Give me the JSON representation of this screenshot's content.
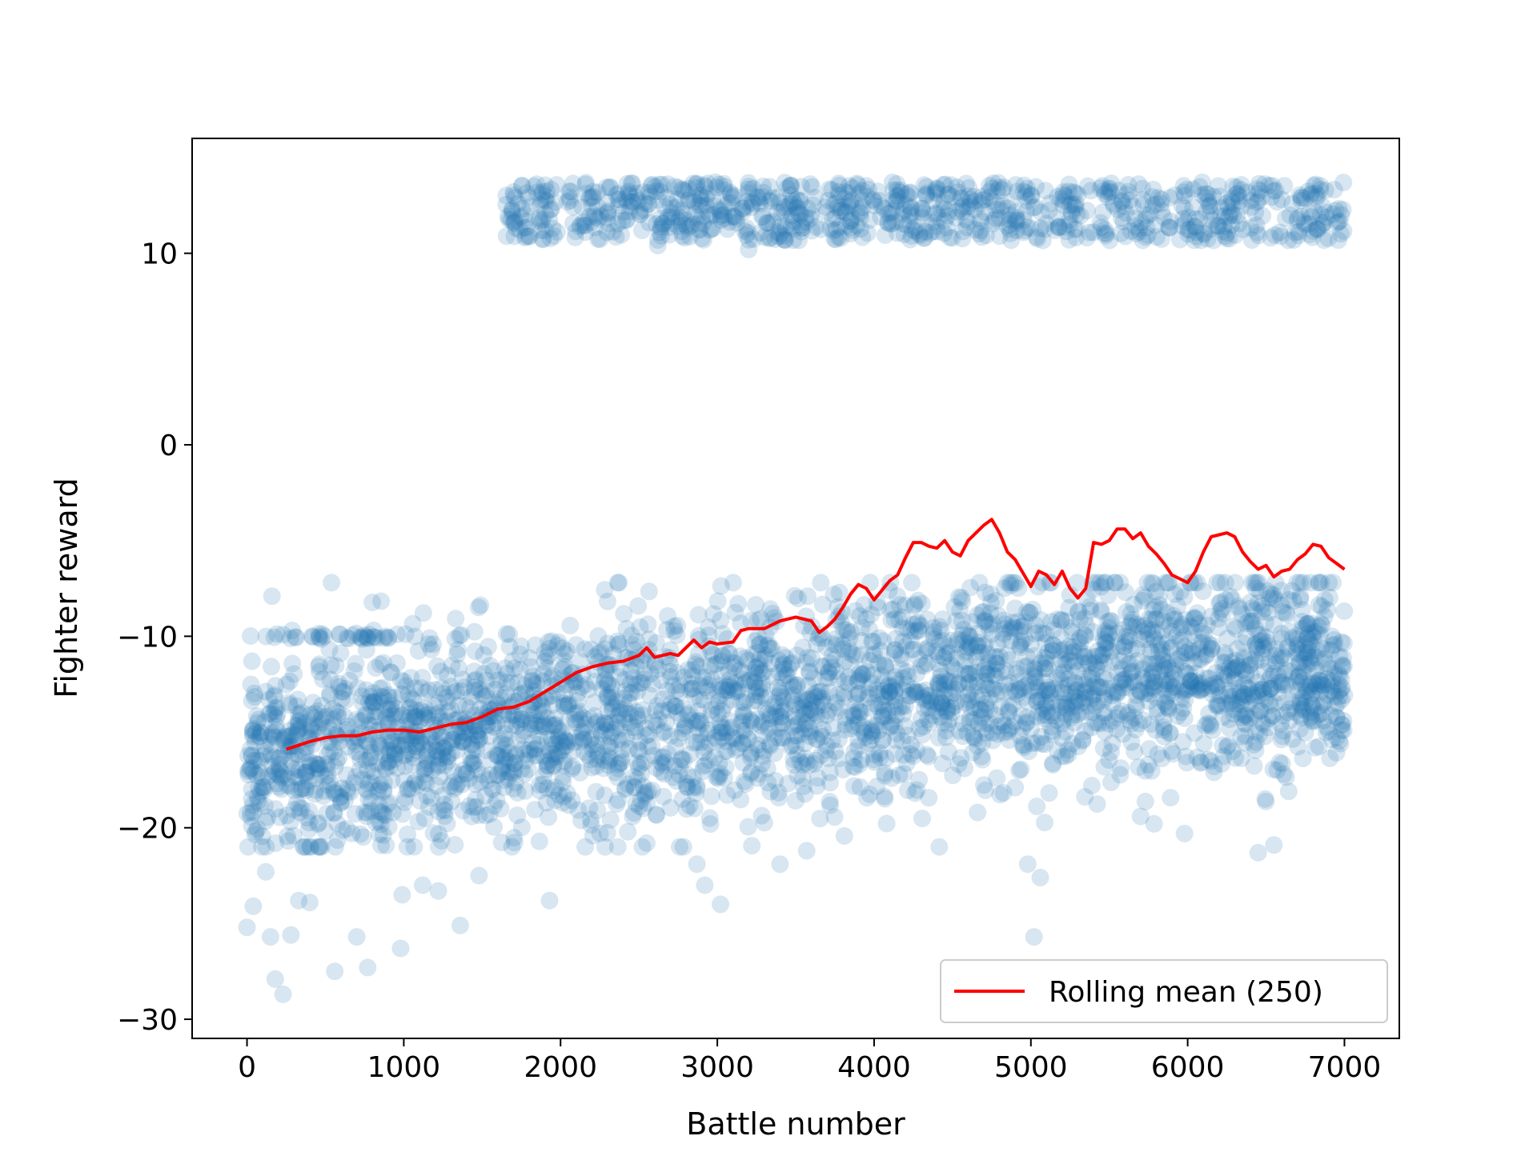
{
  "chart_data": {
    "type": "scatter",
    "title": "",
    "xlabel": "Battle number",
    "ylabel": "Fighter reward",
    "xlim": [
      -350,
      7350
    ],
    "ylim": [
      -31,
      16
    ],
    "xticks": [
      0,
      1000,
      2000,
      3000,
      4000,
      5000,
      6000,
      7000
    ],
    "yticks": [
      -30,
      -20,
      -10,
      0,
      10
    ],
    "ytick_labels": [
      "−30",
      "−20",
      "−10",
      "0",
      "10"
    ],
    "grid": false,
    "legend_position": "lower-right",
    "series": [
      {
        "type": "scatter",
        "color": "#1f77b4",
        "alpha": 0.18,
        "note_points": "approx. one point per battle, 0–7000",
        "clusters": [
          {
            "x_range": [
              0,
              1100
            ],
            "y": -10,
            "spread": 0.15,
            "count": 40
          },
          {
            "x_range": [
              0,
              7000
            ],
            "y_mean_start": -16.5,
            "y_mean_end": -12,
            "spread": 2.6,
            "count": 3200
          },
          {
            "x_range": [
              1650,
              7000
            ],
            "y": 12.2,
            "spread": 0.85,
            "count": 900
          }
        ],
        "outliers": [
          [
            0,
            -25.2
          ],
          [
            40,
            -24.1
          ],
          [
            120,
            -22.3
          ],
          [
            150,
            -25.7
          ],
          [
            180,
            -27.9
          ],
          [
            230,
            -28.7
          ],
          [
            280,
            -25.6
          ],
          [
            330,
            -23.8
          ],
          [
            400,
            -23.9
          ],
          [
            560,
            -27.5
          ],
          [
            700,
            -25.7
          ],
          [
            770,
            -27.3
          ],
          [
            980,
            -26.3
          ],
          [
            990,
            -23.5
          ],
          [
            1120,
            -23.0
          ],
          [
            1220,
            -23.3
          ],
          [
            1360,
            -25.1
          ],
          [
            1480,
            -22.5
          ],
          [
            1930,
            -23.8
          ],
          [
            2550,
            -20.8
          ],
          [
            2870,
            -21.9
          ],
          [
            2920,
            -23.0
          ],
          [
            3020,
            -24.0
          ],
          [
            3400,
            -21.9
          ],
          [
            3570,
            -21.2
          ],
          [
            4980,
            -21.9
          ],
          [
            5020,
            -25.7
          ],
          [
            5060,
            -22.6
          ],
          [
            5980,
            -20.3
          ],
          [
            6450,
            -21.3
          ],
          [
            6550,
            -20.9
          ],
          [
            4900,
            -17.9
          ],
          [
            1700,
            13.2
          ],
          [
            1830,
            13.5
          ],
          [
            1950,
            11.3
          ],
          [
            2620,
            10.4
          ],
          [
            3200,
            10.2
          ]
        ]
      },
      {
        "name": "Rolling mean (250)",
        "type": "line",
        "color": "#ff0000",
        "x": [
          250,
          400,
          500,
          600,
          700,
          800,
          900,
          1000,
          1100,
          1200,
          1300,
          1400,
          1500,
          1600,
          1700,
          1800,
          1900,
          2000,
          2100,
          2200,
          2300,
          2400,
          2500,
          2550,
          2600,
          2700,
          2750,
          2800,
          2850,
          2900,
          2950,
          3000,
          3100,
          3150,
          3200,
          3300,
          3400,
          3450,
          3500,
          3600,
          3650,
          3700,
          3750,
          3800,
          3850,
          3900,
          3950,
          4000,
          4050,
          4100,
          4150,
          4200,
          4250,
          4300,
          4350,
          4400,
          4450,
          4500,
          4550,
          4600,
          4650,
          4700,
          4750,
          4800,
          4850,
          4900,
          5000,
          5050,
          5100,
          5150,
          5200,
          5250,
          5300,
          5350,
          5400,
          5450,
          5500,
          5550,
          5600,
          5650,
          5700,
          5750,
          5800,
          5850,
          5900,
          5950,
          6000,
          6050,
          6100,
          6150,
          6200,
          6250,
          6300,
          6350,
          6400,
          6450,
          6500,
          6550,
          6600,
          6650,
          6700,
          6750,
          6800,
          6850,
          6900,
          6950,
          7000
        ],
        "y": [
          -15.9,
          -15.5,
          -15.3,
          -15.2,
          -15.2,
          -15.0,
          -14.9,
          -14.9,
          -15.0,
          -14.8,
          -14.6,
          -14.5,
          -14.2,
          -13.8,
          -13.7,
          -13.4,
          -12.9,
          -12.4,
          -11.9,
          -11.6,
          -11.4,
          -11.3,
          -11.0,
          -10.6,
          -11.1,
          -10.9,
          -11.0,
          -10.6,
          -10.2,
          -10.6,
          -10.3,
          -10.4,
          -10.3,
          -9.7,
          -9.6,
          -9.6,
          -9.2,
          -9.1,
          -9.0,
          -9.2,
          -9.8,
          -9.5,
          -9.1,
          -8.5,
          -7.8,
          -7.3,
          -7.5,
          -8.1,
          -7.6,
          -7.1,
          -6.8,
          -5.9,
          -5.1,
          -5.1,
          -5.3,
          -5.4,
          -5.0,
          -5.6,
          -5.8,
          -5.0,
          -4.6,
          -4.2,
          -3.9,
          -4.6,
          -5.6,
          -6.0,
          -7.4,
          -6.6,
          -6.8,
          -7.3,
          -6.6,
          -7.5,
          -8.0,
          -7.5,
          -5.1,
          -5.2,
          -5.0,
          -4.4,
          -4.4,
          -4.9,
          -4.6,
          -5.3,
          -5.7,
          -6.2,
          -6.8,
          -7.0,
          -7.2,
          -6.6,
          -5.6,
          -4.8,
          -4.7,
          -4.6,
          -4.8,
          -5.6,
          -6.1,
          -6.5,
          -6.3,
          -6.9,
          -6.6,
          -6.5,
          -6.0,
          -5.7,
          -5.2,
          -5.3,
          -5.9,
          -6.2,
          -6.5
        ]
      }
    ],
    "legend": [
      {
        "label": "Rolling mean (250)",
        "color": "#ff0000"
      }
    ]
  }
}
